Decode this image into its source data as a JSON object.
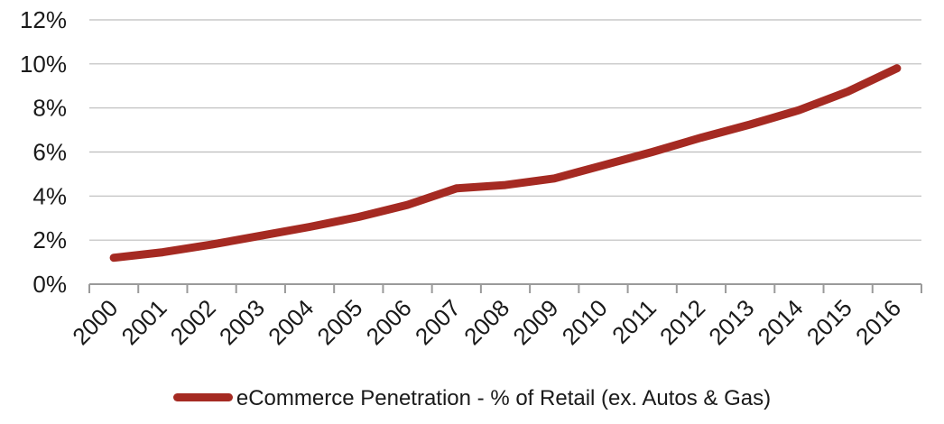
{
  "chart_data": {
    "type": "line",
    "x": [
      "2000",
      "2001",
      "2002",
      "2003",
      "2004",
      "2005",
      "2006",
      "2007",
      "2008",
      "2009",
      "2010",
      "2011",
      "2012",
      "2013",
      "2014",
      "2015",
      "2016"
    ],
    "series": [
      {
        "name": "eCommerce Penetration - % of Retail (ex. Autos & Gas)",
        "values": [
          1.2,
          1.45,
          1.8,
          2.2,
          2.6,
          3.05,
          3.6,
          4.35,
          4.5,
          4.8,
          5.4,
          6.0,
          6.65,
          7.25,
          7.9,
          8.75,
          9.8
        ],
        "color": "#a52a22"
      }
    ],
    "ylim": [
      0,
      12
    ],
    "yticks": [
      "0%",
      "2%",
      "4%",
      "6%",
      "8%",
      "10%",
      "12%"
    ],
    "grid": true,
    "legend_position": "bottom"
  }
}
